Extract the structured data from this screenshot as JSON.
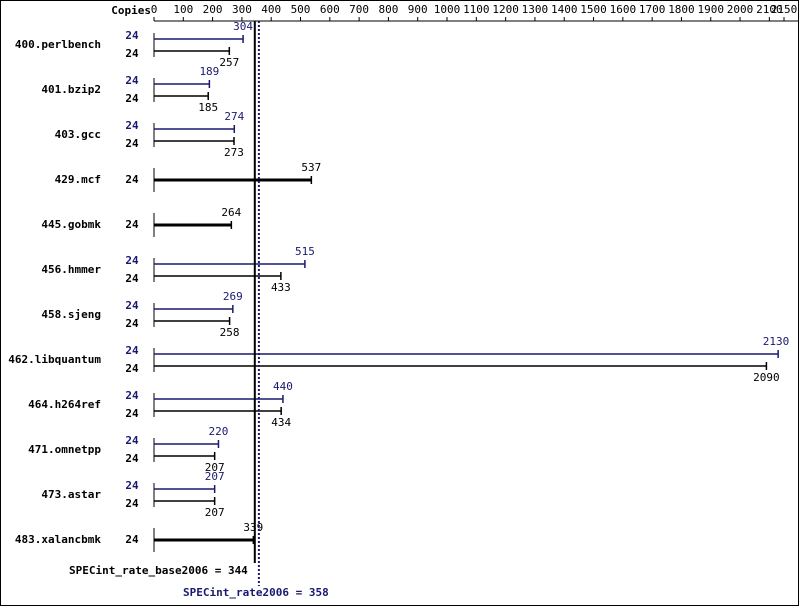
{
  "chart_data": {
    "type": "spec-bar",
    "copies_header": "Copies",
    "categories": [
      "400.perlbench",
      "401.bzip2",
      "403.gcc",
      "429.mcf",
      "445.gobmk",
      "456.hmmer",
      "458.sjeng",
      "462.libquantum",
      "464.h264ref",
      "471.omnetpp",
      "473.astar",
      "483.xalancbmk"
    ],
    "series": [
      {
        "color": "#191970",
        "copies": [
          24,
          24,
          24,
          null,
          null,
          24,
          24,
          24,
          24,
          24,
          24,
          null
        ],
        "values": [
          304,
          189,
          274,
          null,
          null,
          515,
          269,
          2130,
          440,
          220,
          207,
          null
        ]
      },
      {
        "color": "#000000",
        "copies": [
          24,
          24,
          24,
          24,
          24,
          24,
          24,
          24,
          24,
          24,
          24,
          24
        ],
        "values": [
          257,
          185,
          273,
          537,
          264,
          433,
          258,
          2090,
          434,
          207,
          207,
          339
        ]
      }
    ],
    "xlim": [
      0,
      2150
    ],
    "xticks": [
      0,
      100,
      200,
      300,
      400,
      500,
      600,
      700,
      800,
      900,
      1000,
      1100,
      1200,
      1300,
      1400,
      1500,
      1600,
      1700,
      1800,
      1900,
      2000,
      2100,
      2150
    ],
    "reference_lines": [
      {
        "label": "SPECint_rate_base2006 = 344",
        "value": 344,
        "color": "#000000"
      },
      {
        "label": "SPECint_rate2006 = 358",
        "value": 358,
        "color": "#191970"
      }
    ]
  }
}
